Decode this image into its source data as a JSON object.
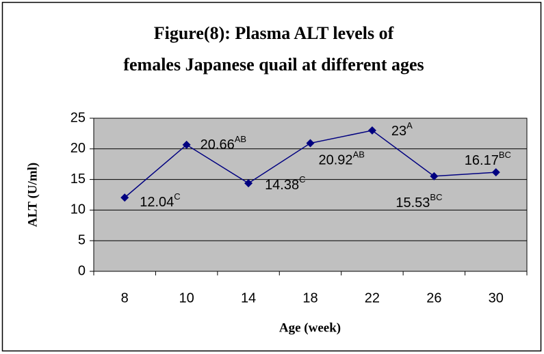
{
  "chart_data": {
    "type": "line",
    "title": [
      "Figure(8): Plasma ALT levels of",
      "females Japanese quail at different ages"
    ],
    "x_label": "Age (week)",
    "y_label": "ALT (U/ml)",
    "categories": [
      "8",
      "10",
      "14",
      "18",
      "22",
      "26",
      "30"
    ],
    "series": [
      {
        "name": "ALT",
        "color": "#000080",
        "values": [
          12.04,
          20.66,
          14.38,
          20.92,
          23,
          15.53,
          16.17
        ],
        "significance": [
          "C",
          "AB",
          "C",
          "AB",
          "A",
          "BC",
          "BC"
        ]
      }
    ],
    "ylim": [
      0,
      25
    ],
    "yticks": [
      0,
      5,
      10,
      15,
      20,
      25
    ],
    "grid": true,
    "plot_background": "#c0c0c0"
  }
}
